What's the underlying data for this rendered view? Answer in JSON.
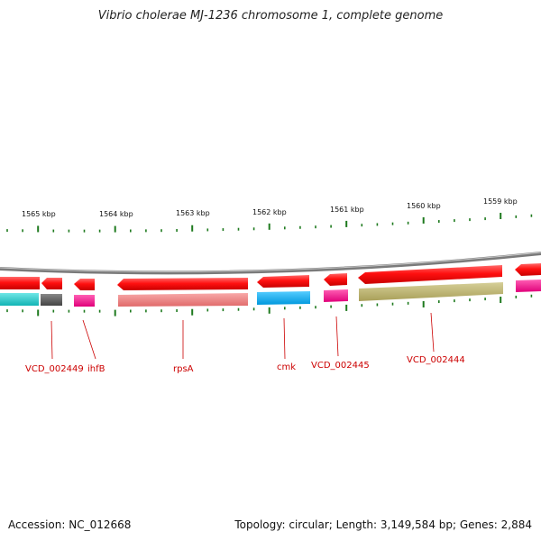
{
  "title": "Vibrio cholerae MJ-1236 chromosome 1, complete genome",
  "footer": {
    "accession": "Accession: NC_012668",
    "summary": "Topology: circular; Length: 3,149,584 bp; Genes: 2,884"
  },
  "colors": {
    "backbone": "#7a7a7a",
    "tick": "#1e7a1e",
    "gene_label": "#cc0000",
    "gene_strand": "#ff1a1a",
    "cog_cyan": "#19c3c3",
    "cog_gray": "#555555",
    "cog_magenta": "#ff1493",
    "cog_salmon": "#f08080",
    "cog_blue": "#00aaee",
    "cog_olive": "#b8b070"
  },
  "scale_labels": [
    "1565 kbp",
    "1564 kbp",
    "1563 kbp",
    "1562 kbp",
    "1561 kbp",
    "1560 kbp",
    "1559 kbp"
  ],
  "gene_labels": [
    "VCD_002449",
    "ihfB",
    "rpsA",
    "cmk",
    "VCD_002445",
    "VCD_002444"
  ]
}
